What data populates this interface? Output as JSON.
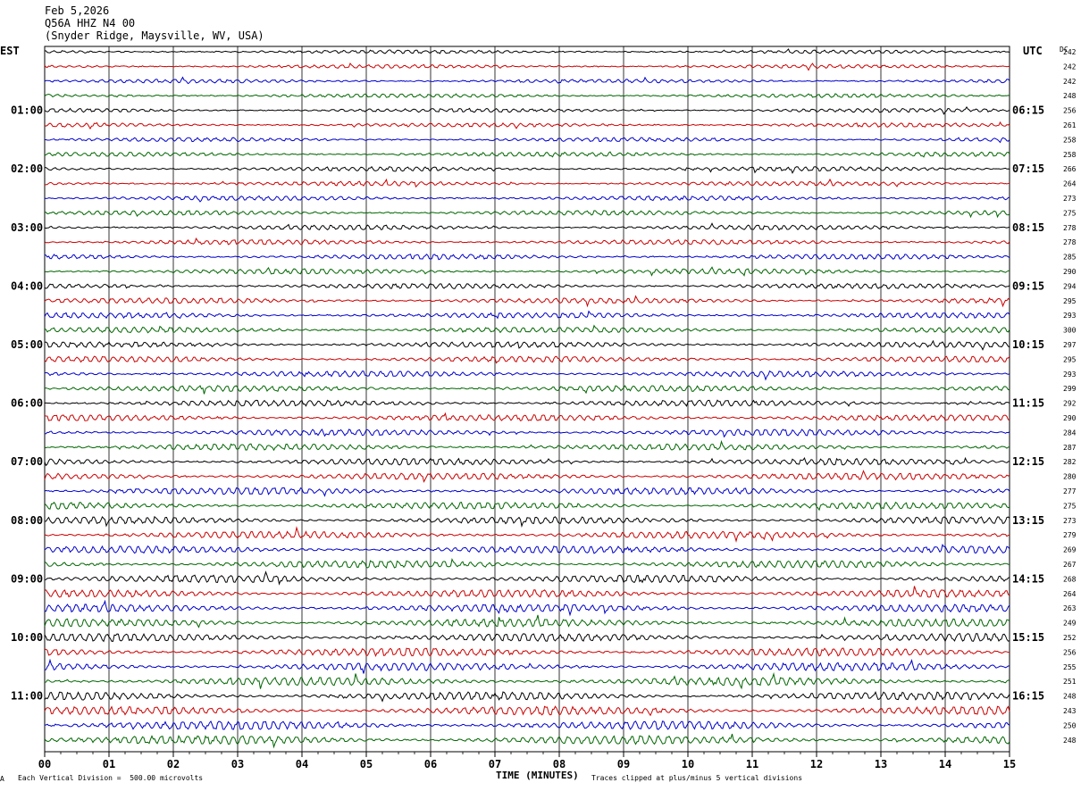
{
  "header": {
    "date": "Feb 5,2026",
    "station": "Q56A HHZ N4 00",
    "location": "(Snyder Ridge, Maysville, WV, USA)"
  },
  "chart_data": {
    "type": "line",
    "left_axis_label": "EST",
    "right_axis_label": "UTC",
    "dc_label": "DC",
    "left_hour_labels": [
      "01:00",
      "02:00",
      "03:00",
      "04:00",
      "05:00",
      "06:00",
      "07:00",
      "08:00",
      "09:00",
      "10:00",
      "11:00"
    ],
    "right_hour_labels": [
      "06:15",
      "07:15",
      "08:15",
      "09:15",
      "10:15",
      "11:15",
      "12:15",
      "13:15",
      "14:15",
      "15:15",
      "16:15"
    ],
    "dc_values": [
      242,
      242,
      242,
      248,
      256,
      261,
      258,
      258,
      266,
      264,
      273,
      275,
      278,
      278,
      285,
      290,
      294,
      295,
      293,
      300,
      297,
      295,
      293,
      299,
      292,
      290,
      284,
      287,
      282,
      280,
      277,
      275,
      273,
      279,
      269,
      267,
      268,
      264,
      263,
      249,
      252,
      256,
      255,
      251,
      248,
      243,
      250,
      248
    ],
    "trace_colors": [
      "#000000",
      "#cc0000",
      "#0000cc",
      "#006600"
    ],
    "x_tick_labels": [
      "00",
      "01",
      "02",
      "03",
      "04",
      "05",
      "06",
      "07",
      "08",
      "09",
      "10",
      "11",
      "12",
      "13",
      "14",
      "15"
    ],
    "x_range": [
      0,
      15
    ],
    "xlabel": "TIME (MINUTES)",
    "grid": true
  },
  "footer": {
    "scale_note": "Each Vertical Division =  500.00 microvolts",
    "clip_note": "Traces clipped at plus/minus 5 vertical divisions",
    "corner_mark": "A"
  }
}
